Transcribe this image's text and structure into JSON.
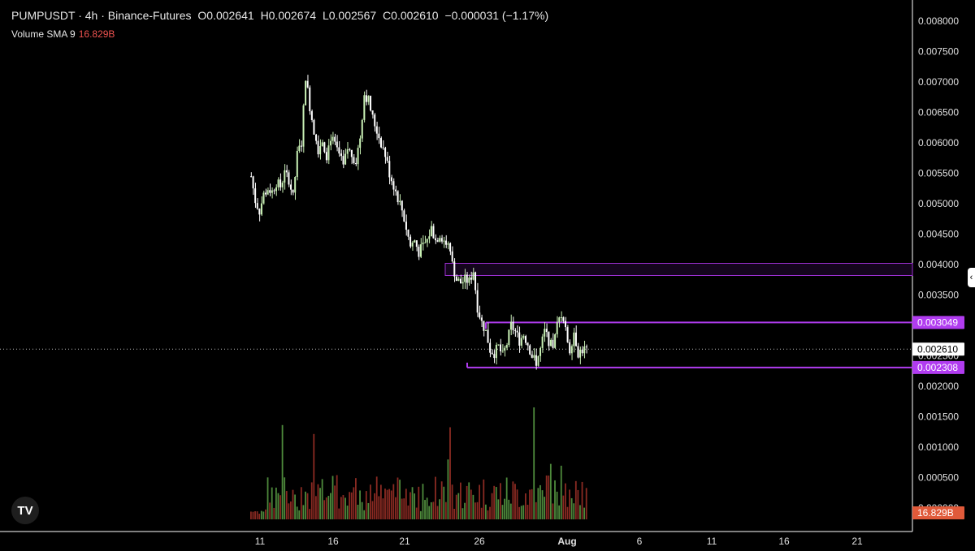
{
  "legend": {
    "symbol": "PUMPUSDT · 4h · Binance-Futures",
    "open": "O0.002641",
    "high": "H0.002674",
    "low": "L0.002567",
    "close": "C0.002610",
    "change": "−0.000031 (−1.17%)",
    "volume_label": "Volume SMA 9",
    "volume_value": "16.829B"
  },
  "logo_text": "TV",
  "colors": {
    "up": "#c8f0b4",
    "down": "#ffffff",
    "zone": "#9b2fd0",
    "vol_up": "#4e8a3c",
    "vol_down": "#8a2a22",
    "badge_zone": "#b13cf0",
    "badge_vol": "#e05a3a"
  },
  "chart_data": {
    "type": "candlestick",
    "title": "PUMPUSDT · 4h · Binance-Futures",
    "y_axis_ticks": [
      "0.008000",
      "0.007500",
      "0.007000",
      "0.006500",
      "0.006000",
      "0.005500",
      "0.005000",
      "0.004500",
      "0.004000",
      "0.003500",
      "0.003049",
      "0.002610",
      "0.002500",
      "0.002308",
      "0.002000",
      "0.001500",
      "0.001000",
      "0.000500",
      "0.000000",
      "16.829B"
    ],
    "x_axis_ticks": [
      "11",
      "16",
      "21",
      "26",
      "Aug",
      "6",
      "11",
      "16",
      "21"
    ],
    "ylim": [
      0.0,
      0.00824
    ],
    "price_badges": [
      {
        "label": "0.003049",
        "value": 0.003049,
        "style": "zone"
      },
      {
        "label": "0.002610",
        "value": 0.00261,
        "style": "last"
      },
      {
        "label": "0.002308",
        "value": 0.002308,
        "style": "zone"
      },
      {
        "label": "16.829B",
        "value": 0.0,
        "style": "volume"
      }
    ],
    "zones": [
      {
        "top": 0.00402,
        "bottom": 0.00382,
        "type": "resistance-box"
      },
      {
        "top": 0.003049,
        "bottom": 0.002308,
        "type": "range-box"
      }
    ],
    "last_price": 0.00261,
    "volume_sma_label": "16.829B",
    "close_path_approx": [
      [
        0,
        0.00545
      ],
      [
        2,
        0.00505
      ],
      [
        4,
        0.00488
      ],
      [
        6,
        0.00515
      ],
      [
        8,
        0.00525
      ],
      [
        10,
        0.0052
      ],
      [
        12,
        0.00535
      ],
      [
        14,
        0.00528
      ],
      [
        16,
        0.0055
      ],
      [
        18,
        0.0054
      ],
      [
        20,
        0.0051
      ],
      [
        22,
        0.0058
      ],
      [
        24,
        0.006
      ],
      [
        26,
        0.0071
      ],
      [
        28,
        0.0066
      ],
      [
        30,
        0.0062
      ],
      [
        32,
        0.0059
      ],
      [
        34,
        0.00605
      ],
      [
        36,
        0.0058
      ],
      [
        38,
        0.0061
      ],
      [
        40,
        0.00595
      ],
      [
        42,
        0.0058
      ],
      [
        44,
        0.0056
      ],
      [
        46,
        0.0059
      ],
      [
        48,
        0.0058
      ],
      [
        50,
        0.0057
      ],
      [
        52,
        0.0061
      ],
      [
        54,
        0.0068
      ],
      [
        56,
        0.0067
      ],
      [
        58,
        0.0064
      ],
      [
        60,
        0.0062
      ],
      [
        62,
        0.006
      ],
      [
        64,
        0.0058
      ],
      [
        66,
        0.0055
      ],
      [
        68,
        0.0053
      ],
      [
        70,
        0.0051
      ],
      [
        72,
        0.0049
      ],
      [
        74,
        0.0046
      ],
      [
        76,
        0.0043
      ],
      [
        78,
        0.0044
      ],
      [
        80,
        0.0042
      ],
      [
        82,
        0.0043
      ],
      [
        84,
        0.0044
      ],
      [
        86,
        0.0046
      ],
      [
        88,
        0.0044
      ],
      [
        90,
        0.0045
      ],
      [
        92,
        0.0044
      ],
      [
        94,
        0.0043
      ],
      [
        96,
        0.004
      ],
      [
        98,
        0.00375
      ],
      [
        100,
        0.0037
      ],
      [
        102,
        0.00375
      ],
      [
        104,
        0.00372
      ],
      [
        106,
        0.0039
      ],
      [
        108,
        0.0033
      ],
      [
        110,
        0.00305
      ],
      [
        112,
        0.0029
      ],
      [
        114,
        0.0026
      ],
      [
        116,
        0.00255
      ],
      [
        118,
        0.00265
      ],
      [
        120,
        0.0025
      ],
      [
        122,
        0.0027
      ],
      [
        124,
        0.003
      ],
      [
        126,
        0.0029
      ],
      [
        128,
        0.00275
      ],
      [
        130,
        0.00285
      ],
      [
        132,
        0.0027
      ],
      [
        134,
        0.0025
      ],
      [
        136,
        0.0024
      ],
      [
        138,
        0.0026
      ],
      [
        140,
        0.0029
      ],
      [
        142,
        0.00275
      ],
      [
        144,
        0.0026
      ],
      [
        146,
        0.003
      ],
      [
        148,
        0.0032
      ],
      [
        150,
        0.0029
      ],
      [
        152,
        0.0026
      ],
      [
        154,
        0.0029
      ],
      [
        156,
        0.00255
      ],
      [
        158,
        0.0026
      ],
      [
        160,
        0.00261
      ]
    ]
  }
}
